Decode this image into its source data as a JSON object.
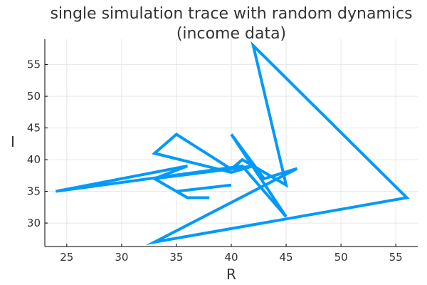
{
  "chart_data": {
    "type": "line",
    "title_line1": "single simulation trace with random dynamics",
    "title_line2": "(income data)",
    "xlabel": "R",
    "ylabel": "I",
    "xlim": [
      23,
      57
    ],
    "ylim": [
      26.3,
      59
    ],
    "xticks": [
      25,
      30,
      35,
      40,
      45,
      50,
      55
    ],
    "yticks": [
      30,
      35,
      40,
      45,
      50,
      55
    ],
    "grid": true,
    "legend": "none",
    "series": [
      {
        "color": "#009af9",
        "points": [
          [
            40,
            36
          ],
          [
            35,
            35
          ],
          [
            33,
            37
          ],
          [
            42,
            39
          ],
          [
            40,
            38
          ],
          [
            33,
            41
          ],
          [
            35,
            44
          ],
          [
            40,
            38.5
          ],
          [
            41,
            40
          ],
          [
            45,
            36
          ],
          [
            42,
            58
          ],
          [
            56,
            34
          ],
          [
            33,
            27
          ],
          [
            46,
            38.6
          ],
          [
            43,
            37
          ],
          [
            40,
            44
          ],
          [
            45,
            31
          ],
          [
            41,
            39
          ],
          [
            24,
            35
          ],
          [
            36,
            39
          ],
          [
            33,
            37
          ],
          [
            36,
            34
          ],
          [
            38,
            34
          ]
        ]
      }
    ]
  }
}
